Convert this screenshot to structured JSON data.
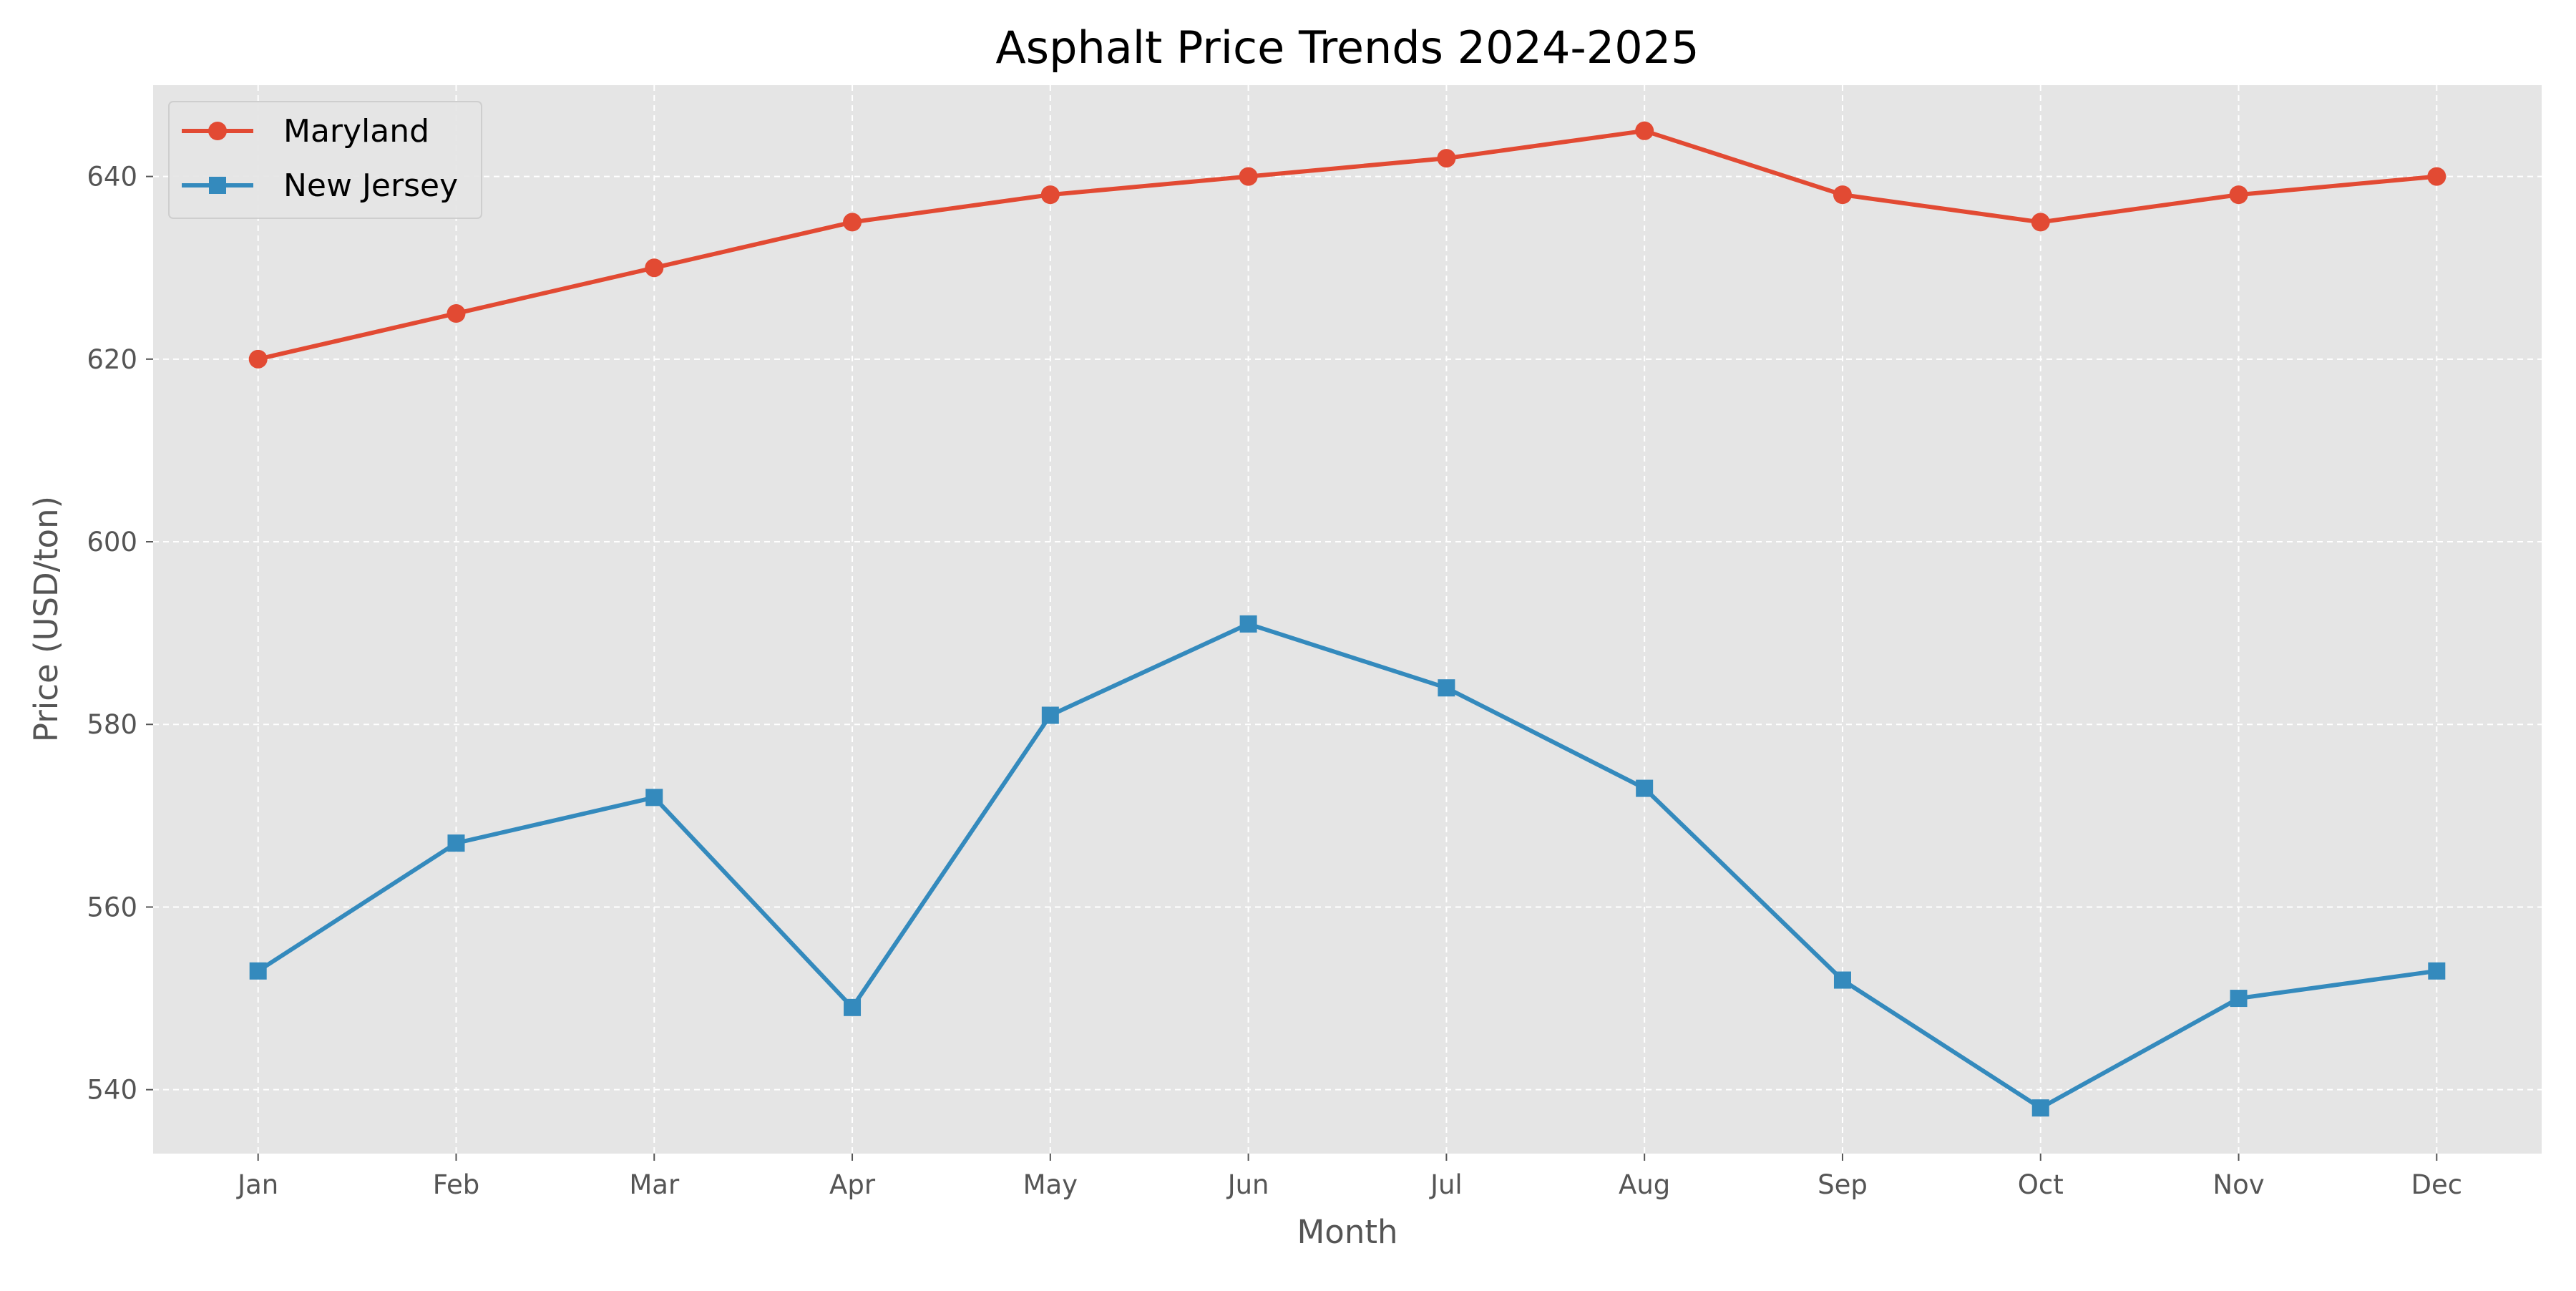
{
  "chart_data": {
    "type": "line",
    "title": "Asphalt Price Trends 2024-2025",
    "xlabel": "Month",
    "ylabel": "Price (USD/ton)",
    "categories": [
      "Jan",
      "Feb",
      "Mar",
      "Apr",
      "May",
      "Jun",
      "Jul",
      "Aug",
      "Sep",
      "Oct",
      "Nov",
      "Dec"
    ],
    "ylim": [
      533,
      650
    ],
    "yticks": [
      540,
      560,
      580,
      600,
      620,
      640
    ],
    "grid": true,
    "legend_position": "top-left",
    "series": [
      {
        "name": "Maryland",
        "color": "#E24A33",
        "marker": "circle",
        "values": [
          620,
          625,
          630,
          635,
          638,
          640,
          642,
          645,
          638,
          635,
          638,
          640
        ]
      },
      {
        "name": "New Jersey",
        "color": "#348ABD",
        "marker": "square",
        "values": [
          553,
          567,
          572,
          549,
          581,
          591,
          584,
          573,
          552,
          538,
          550,
          553
        ]
      }
    ]
  }
}
